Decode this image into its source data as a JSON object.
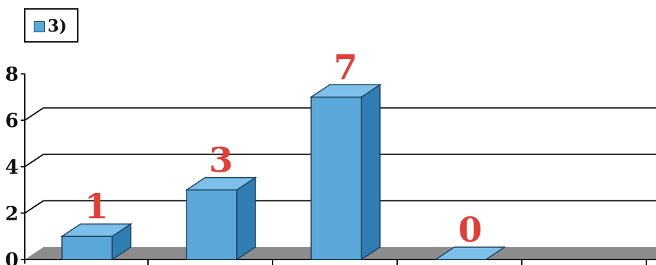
{
  "legend": {
    "label": "3)"
  },
  "colors": {
    "bar_front": "#5aa7d9",
    "bar_top": "#7cc0ea",
    "bar_side": "#2f7db2",
    "bar_outline": "#1c3f5c",
    "floor": "#8c8c8c",
    "gridline": "#111111",
    "data_label": "#e0403a",
    "axis_text": "#111111"
  },
  "chart_data": {
    "type": "bar",
    "categories": [
      "",
      "",
      "",
      "",
      ""
    ],
    "series": [
      {
        "values": [
          1,
          3,
          7,
          0,
          null
        ]
      }
    ],
    "data_labels": [
      "1",
      "3",
      "7",
      "0",
      ""
    ],
    "y_ticks": [
      "0",
      "2",
      "4",
      "6",
      "8"
    ],
    "ylim": [
      0,
      8
    ],
    "grid": true,
    "legend_position": "top-left",
    "title": "",
    "xlabel": "",
    "ylabel": ""
  }
}
